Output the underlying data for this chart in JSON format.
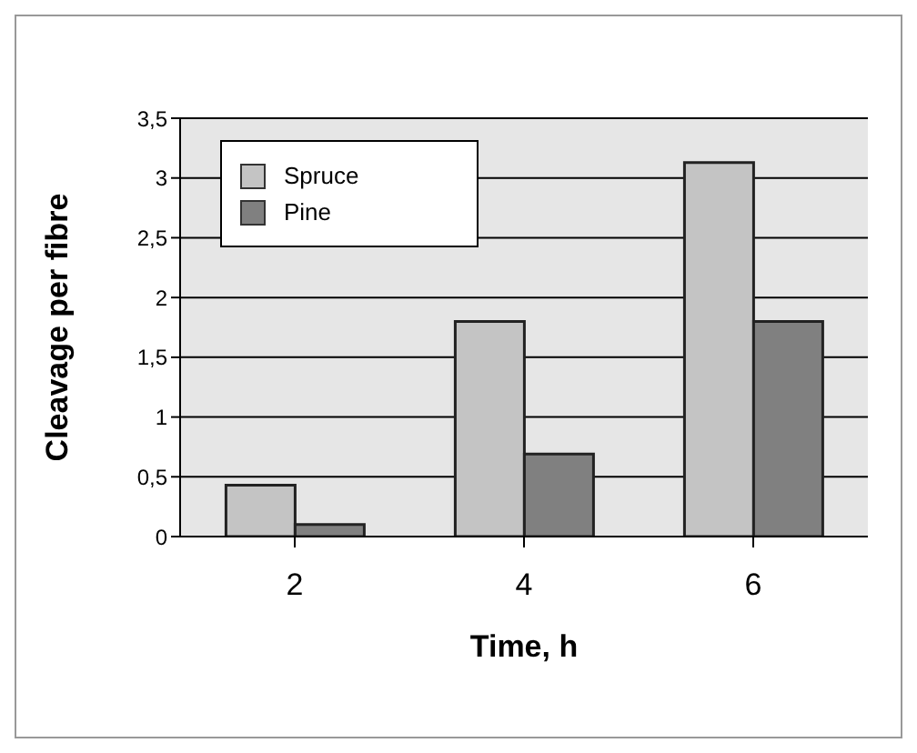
{
  "chart_data": {
    "type": "bar",
    "xlabel": "Time, h",
    "ylabel": "Cleavage per fibre",
    "categories": [
      "2",
      "4",
      "6"
    ],
    "series": [
      {
        "name": "Spruce",
        "color": "#c4c4c4",
        "values": [
          0.43,
          1.8,
          3.13
        ]
      },
      {
        "name": "Pine",
        "color": "#808080",
        "values": [
          0.1,
          0.69,
          1.8
        ]
      }
    ],
    "ylim": [
      0,
      3.5
    ],
    "yticks": [
      0,
      {
        "value": 0.5,
        "label": "0,5"
      },
      1,
      {
        "value": 1.5,
        "label": "1,5"
      },
      2,
      {
        "value": 2.5,
        "label": "2,5"
      },
      3,
      {
        "value": 3.5,
        "label": "3,5"
      }
    ],
    "grid": "y",
    "legend": "top left"
  }
}
